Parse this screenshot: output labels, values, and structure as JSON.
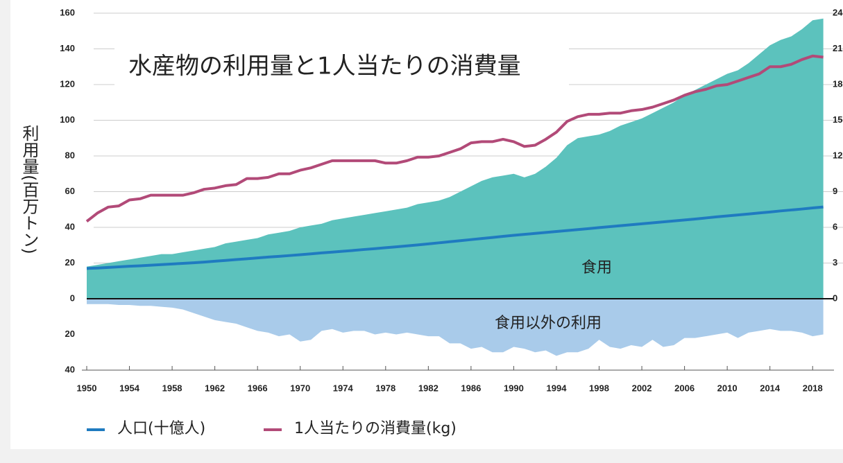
{
  "chart_data": {
    "type": "area",
    "title": "水産物の利用量と1人当たりの消費量",
    "y_label": "利用量(百万トン)",
    "x": [
      1950,
      1951,
      1952,
      1953,
      1954,
      1955,
      1956,
      1957,
      1958,
      1959,
      1960,
      1961,
      1962,
      1963,
      1964,
      1965,
      1966,
      1967,
      1968,
      1969,
      1970,
      1971,
      1972,
      1973,
      1974,
      1975,
      1976,
      1977,
      1978,
      1979,
      1980,
      1981,
      1982,
      1983,
      1984,
      1985,
      1986,
      1987,
      1988,
      1989,
      1990,
      1991,
      1992,
      1993,
      1994,
      1995,
      1996,
      1997,
      1998,
      1999,
      2000,
      2001,
      2002,
      2003,
      2004,
      2005,
      2006,
      2007,
      2008,
      2009,
      2010,
      2011,
      2012,
      2013,
      2014,
      2015,
      2016,
      2017,
      2018,
      2019
    ],
    "xlim": [
      1950,
      2020
    ],
    "xticks": [
      1950,
      1954,
      1958,
      1962,
      1966,
      1970,
      1974,
      1978,
      1982,
      1986,
      1990,
      1994,
      1998,
      2002,
      2006,
      2010,
      2014,
      2018
    ],
    "ylim": [
      -40,
      160
    ],
    "yticks": [
      {
        "value": -40,
        "label": "40"
      },
      {
        "value": -20,
        "label": "20"
      },
      0,
      20,
      40,
      60,
      80,
      100,
      120,
      140,
      160
    ],
    "y2lim": [
      -6,
      24
    ],
    "y2ticks": [
      0,
      3,
      6,
      9,
      12,
      15,
      18,
      21,
      24
    ],
    "grid": true,
    "series": [
      {
        "name": "食用",
        "mark": "area",
        "color": "#5cc2bd",
        "values": [
          18,
          19,
          20,
          21,
          22,
          23,
          24,
          25,
          25,
          26,
          27,
          28,
          29,
          31,
          32,
          33,
          34,
          36,
          37,
          38,
          40,
          41,
          42,
          44,
          45,
          46,
          47,
          48,
          49,
          50,
          51,
          53,
          54,
          55,
          57,
          60,
          63,
          66,
          68,
          69,
          70,
          68,
          70,
          74,
          79,
          86,
          90,
          91,
          92,
          94,
          97,
          99,
          101,
          104,
          107,
          110,
          114,
          117,
          120,
          123,
          126,
          128,
          132,
          137,
          142,
          145,
          147,
          151,
          156,
          157
        ]
      },
      {
        "name": "食用以外の利用",
        "mark": "area",
        "color": "#a9cbea",
        "values": [
          -3,
          -3,
          -3,
          -3.5,
          -3.5,
          -4,
          -4,
          -4.5,
          -5,
          -6,
          -8,
          -10,
          -12,
          -13,
          -14,
          -16,
          -18,
          -19,
          -21,
          -20,
          -24,
          -23,
          -18,
          -17,
          -19,
          -18,
          -18,
          -20,
          -19,
          -20,
          -19,
          -20,
          -21,
          -21,
          -25,
          -25,
          -28,
          -27,
          -30,
          -30,
          -27,
          -28,
          -30,
          -29,
          -32,
          -30,
          -30,
          -28,
          -23,
          -27,
          -28,
          -26,
          -27,
          -23,
          -27,
          -26,
          -22,
          -22,
          -21,
          -20,
          -19,
          -22,
          -19,
          -18,
          -17,
          -18,
          -18,
          -19,
          -21,
          -20
        ]
      },
      {
        "name": "人口(十億人)",
        "mark": "line",
        "axis": "y2",
        "color": "#1f7bc0",
        "values": [
          2.54,
          2.58,
          2.63,
          2.68,
          2.73,
          2.77,
          2.82,
          2.87,
          2.92,
          2.97,
          3.02,
          3.08,
          3.15,
          3.22,
          3.29,
          3.36,
          3.43,
          3.5,
          3.56,
          3.63,
          3.7,
          3.77,
          3.85,
          3.92,
          3.99,
          4.06,
          4.14,
          4.21,
          4.29,
          4.36,
          4.44,
          4.52,
          4.61,
          4.7,
          4.79,
          4.88,
          4.97,
          5.06,
          5.15,
          5.24,
          5.33,
          5.41,
          5.49,
          5.57,
          5.65,
          5.73,
          5.81,
          5.89,
          5.98,
          6.06,
          6.14,
          6.22,
          6.3,
          6.38,
          6.46,
          6.54,
          6.62,
          6.7,
          6.79,
          6.88,
          6.96,
          7.04,
          7.12,
          7.21,
          7.29,
          7.38,
          7.46,
          7.54,
          7.63,
          7.71
        ]
      },
      {
        "name": "1人当たりの消費量(kg)",
        "mark": "line",
        "axis": "y2",
        "color": "#b24a78",
        "values": [
          6.5,
          7.2,
          7.7,
          7.8,
          8.3,
          8.4,
          8.7,
          8.7,
          8.7,
          8.7,
          8.9,
          9.2,
          9.3,
          9.5,
          9.6,
          10.1,
          10.1,
          10.2,
          10.5,
          10.5,
          10.8,
          11.0,
          11.3,
          11.6,
          11.6,
          11.6,
          11.6,
          11.6,
          11.4,
          11.4,
          11.6,
          11.9,
          11.9,
          12.0,
          12.3,
          12.6,
          13.1,
          13.2,
          13.2,
          13.4,
          13.2,
          12.8,
          12.9,
          13.4,
          14.0,
          14.9,
          15.3,
          15.5,
          15.5,
          15.6,
          15.6,
          15.8,
          15.9,
          16.1,
          16.4,
          16.7,
          17.1,
          17.4,
          17.6,
          17.9,
          18.0,
          18.3,
          18.6,
          18.9,
          19.5,
          19.5,
          19.7,
          20.1,
          20.4,
          20.3
        ]
      }
    ]
  }
}
